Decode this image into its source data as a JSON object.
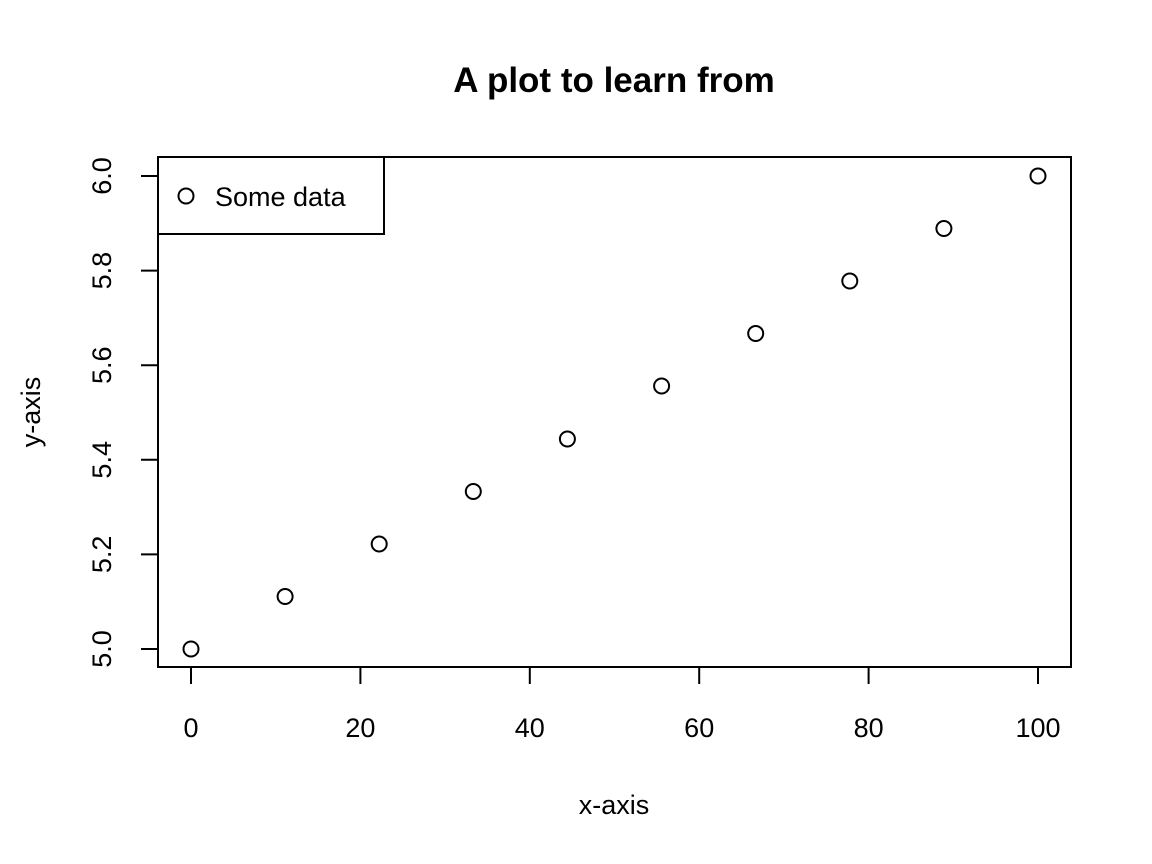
{
  "chart_data": {
    "type": "scatter",
    "title": "A plot to learn from",
    "xlabel": "x-axis",
    "ylabel": "y-axis",
    "xlim": [
      0,
      100
    ],
    "ylim": [
      5.0,
      6.0
    ],
    "xticks": [
      0,
      20,
      40,
      60,
      80,
      100
    ],
    "xtick_labels": [
      "0",
      "20",
      "40",
      "60",
      "80",
      "100"
    ],
    "yticks": [
      5.0,
      5.2,
      5.4,
      5.6,
      5.8,
      6.0
    ],
    "ytick_labels": [
      "5.0",
      "5.2",
      "5.4",
      "5.6",
      "5.8",
      "6.0"
    ],
    "grid": false,
    "legend": {
      "position": "top-left",
      "entries": [
        "Some data"
      ]
    },
    "series": [
      {
        "name": "Some data",
        "marker": "open-circle",
        "x": [
          0,
          11.11,
          22.22,
          33.33,
          44.44,
          55.56,
          66.67,
          77.78,
          88.89,
          100
        ],
        "y": [
          5.0,
          5.111,
          5.222,
          5.333,
          5.444,
          5.556,
          5.667,
          5.778,
          5.889,
          6.0
        ]
      }
    ]
  }
}
